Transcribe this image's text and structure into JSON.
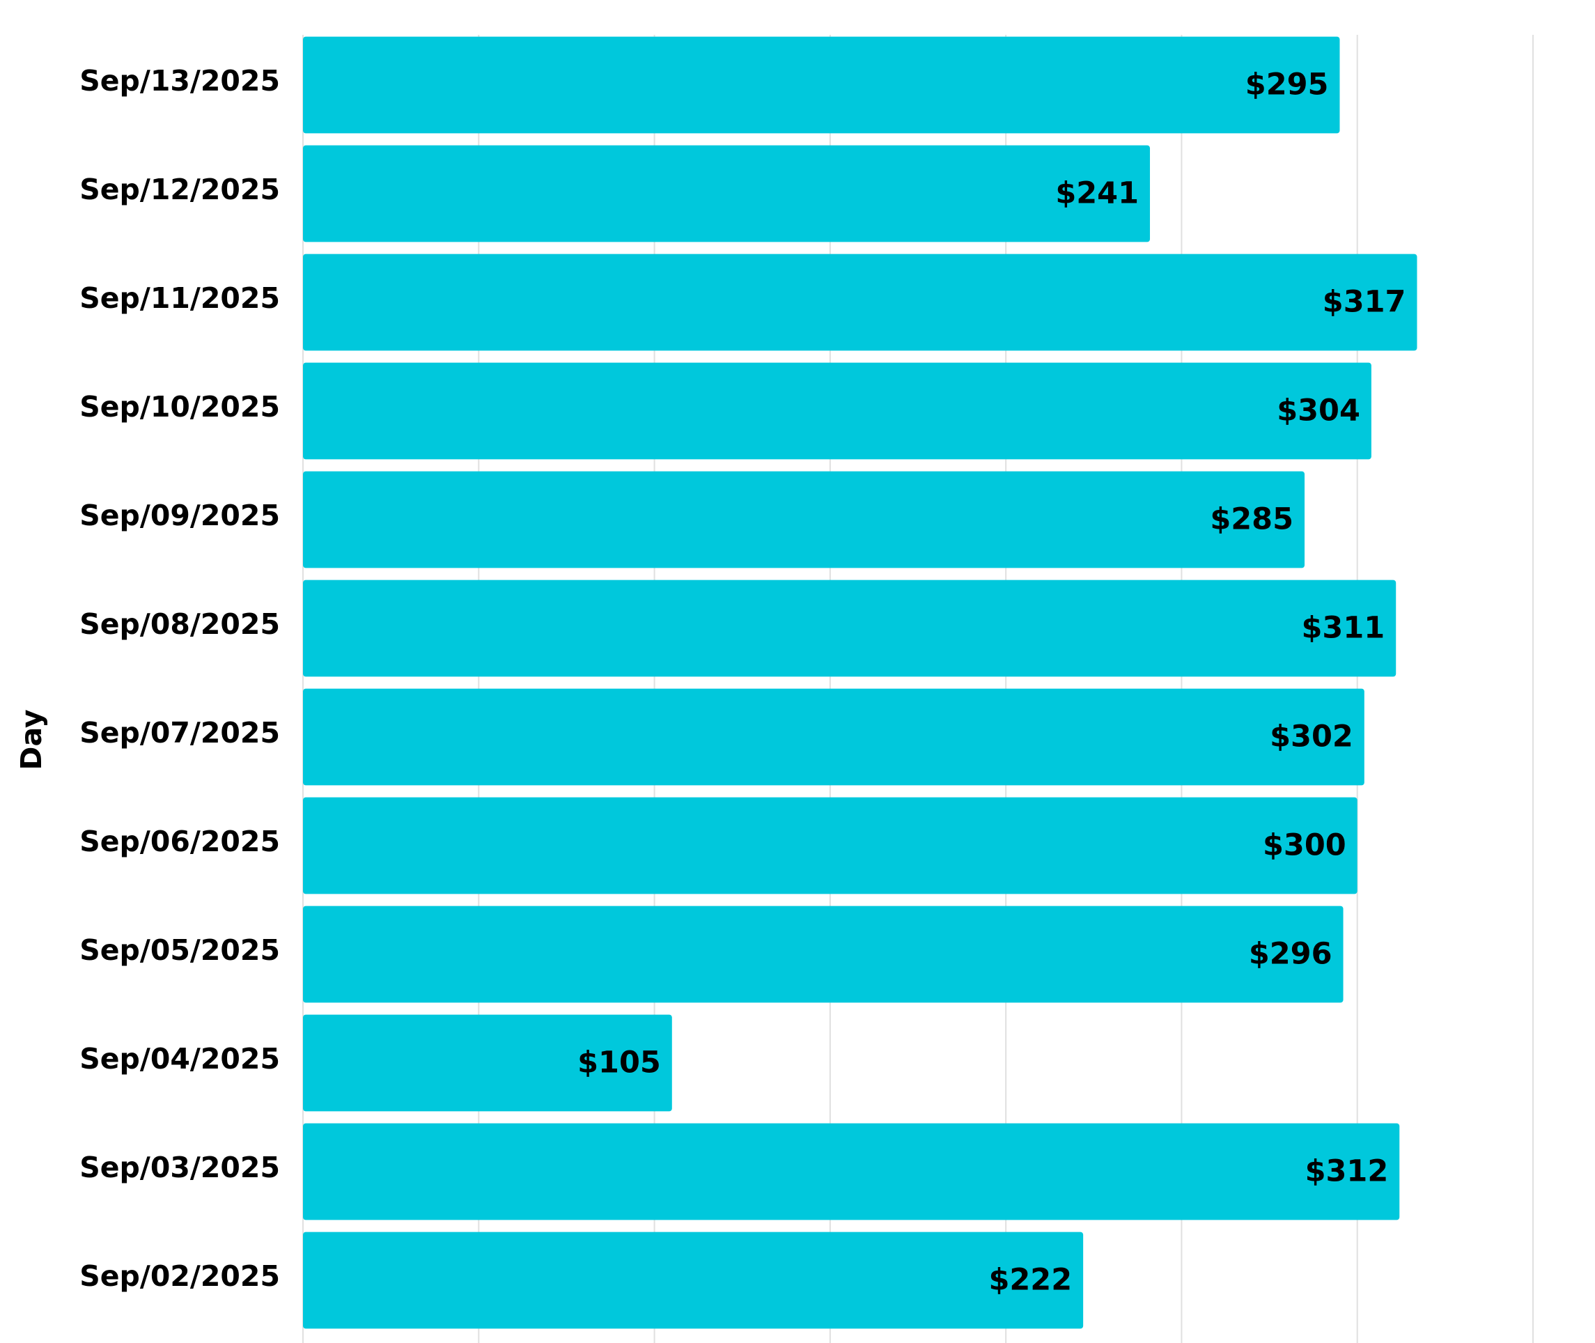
{
  "chart_data": {
    "type": "bar",
    "orientation": "horizontal",
    "y_label": "Day",
    "categories": [
      "Sep/13/2025",
      "Sep/12/2025",
      "Sep/11/2025",
      "Sep/10/2025",
      "Sep/09/2025",
      "Sep/08/2025",
      "Sep/07/2025",
      "Sep/06/2025",
      "Sep/05/2025",
      "Sep/04/2025",
      "Sep/03/2025",
      "Sep/02/2025"
    ],
    "values": [
      295,
      241,
      317,
      304,
      285,
      311,
      302,
      300,
      296,
      105,
      312,
      222
    ],
    "value_labels": [
      "$295",
      "$241",
      "$317",
      "$304",
      "$285",
      "$311",
      "$302",
      "$300",
      "$296",
      "$105",
      "$312",
      "$222"
    ],
    "color": "#00c8dc",
    "xlim": [
      0,
      350
    ],
    "xticks": [
      0,
      50,
      100,
      150,
      200,
      250,
      300,
      350
    ],
    "grid": true
  }
}
